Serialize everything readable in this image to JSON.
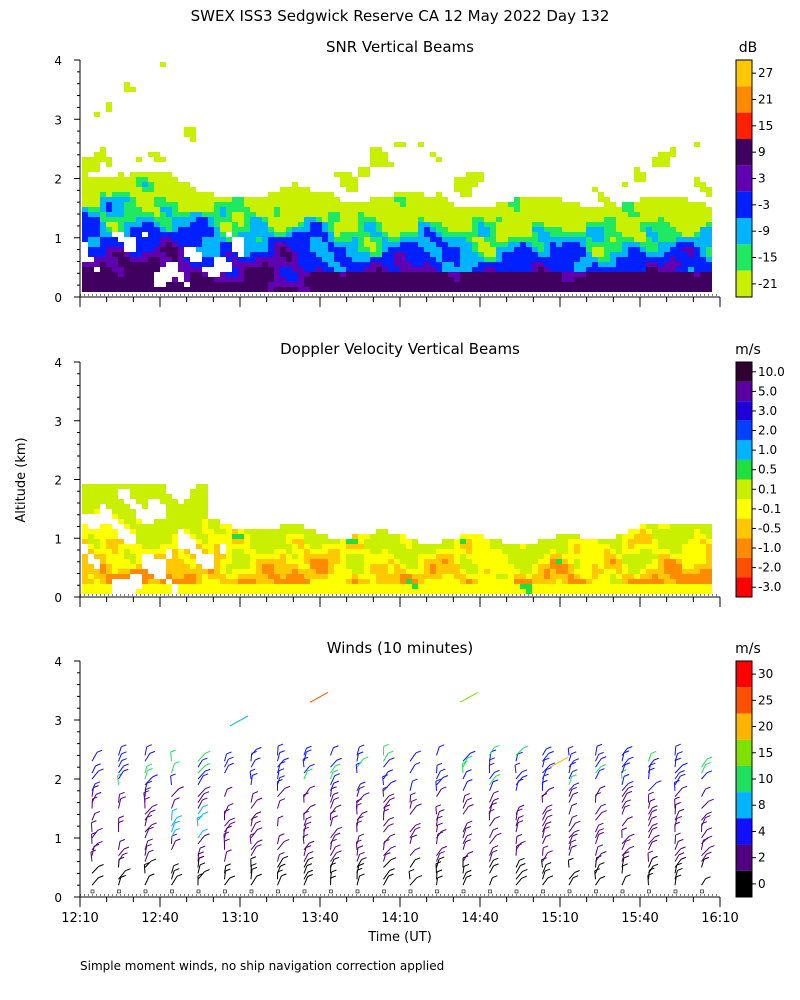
{
  "figure": {
    "title": "SWEX ISS3 Sedgwick Reserve CA  12 May 2022 Day 132",
    "ylabel": "Altitude (km)",
    "xlabel": "Time (UT)",
    "footnote": "Simple moment winds, no ship navigation correction applied"
  },
  "chart_data": [
    {
      "type": "heatmap",
      "title": "SNR Vertical Beams",
      "xlabel": "",
      "ylabel": "",
      "ylim": [
        0,
        4
      ],
      "yticks": [
        "0",
        "1",
        "2",
        "3",
        "4"
      ],
      "colorbar": {
        "unit": "dB",
        "labels": [
          "27",
          "21",
          "15",
          "9",
          "3",
          "-3",
          "-9",
          "-15",
          "-21"
        ],
        "colors": [
          "#ffc800",
          "#ff8c00",
          "#ff2000",
          "#400060",
          "#6000b0",
          "#0020ff",
          "#00b4ff",
          "#20e860",
          "#c8f000"
        ]
      }
    },
    {
      "type": "heatmap",
      "title": "Doppler Velocity Vertical Beams",
      "xlabel": "",
      "ylabel": "Altitude (km)",
      "ylim": [
        0,
        4
      ],
      "yticks": [
        "0",
        "1",
        "2",
        "3",
        "4"
      ],
      "colorbar": {
        "unit": "m/s",
        "labels": [
          "10.0",
          "5.0",
          "3.0",
          "2.0",
          "1.0",
          "0.5",
          "0.1",
          "-0.1",
          "-0.5",
          "-1.0",
          "-2.0",
          "-3.0"
        ],
        "colors": [
          "#300030",
          "#5a00a0",
          "#2000d8",
          "#0040ff",
          "#00b4ff",
          "#20e040",
          "#c8f000",
          "#ffff00",
          "#ffc800",
          "#ff8c00",
          "#ff5000",
          "#ff0000"
        ]
      }
    },
    {
      "type": "scatter",
      "title": "Winds (10 minutes)",
      "xlabel": "Time (UT)",
      "ylabel": "",
      "ylim": [
        0,
        4
      ],
      "yticks": [
        "0",
        "1",
        "2",
        "3",
        "4"
      ],
      "xticks": [
        "12:10",
        "12:40",
        "13:10",
        "13:40",
        "14:10",
        "14:40",
        "15:10",
        "15:40",
        "16:10"
      ],
      "colorbar": {
        "unit": "m/s",
        "labels": [
          "30",
          "25",
          "20",
          "15",
          "10",
          "8",
          "4",
          "2",
          "0"
        ],
        "colors": [
          "#ff0000",
          "#ff5000",
          "#ffb400",
          "#80e000",
          "#20e060",
          "#00b4ff",
          "#1010ff",
          "#500080",
          "#000000"
        ]
      }
    }
  ]
}
